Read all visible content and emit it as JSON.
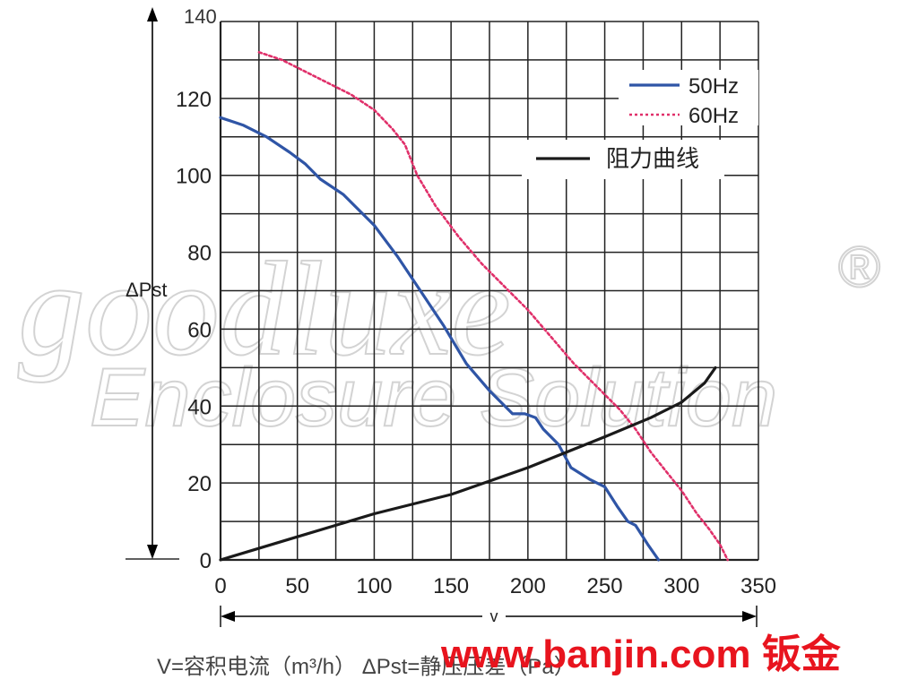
{
  "chart_data": {
    "type": "line",
    "title": "",
    "xlabel": "v",
    "ylabel": "ΔPst",
    "xlim": [
      0,
      350
    ],
    "ylim": [
      0,
      140
    ],
    "x_ticks": [
      0,
      50,
      100,
      150,
      200,
      250,
      300,
      350
    ],
    "y_ticks": [
      0,
      20,
      40,
      60,
      80,
      100,
      120,
      140
    ],
    "grid": true,
    "legend_position": "top-right",
    "series": [
      {
        "name": "50Hz",
        "style": "solid",
        "color": "#2f55a6",
        "points": [
          [
            0,
            115
          ],
          [
            15,
            113
          ],
          [
            30,
            110
          ],
          [
            45,
            106
          ],
          [
            55,
            103
          ],
          [
            65,
            99
          ],
          [
            80,
            95
          ],
          [
            100,
            87
          ],
          [
            115,
            79
          ],
          [
            130,
            70
          ],
          [
            145,
            61
          ],
          [
            160,
            51
          ],
          [
            175,
            44
          ],
          [
            190,
            38
          ],
          [
            198,
            38
          ],
          [
            205,
            37
          ],
          [
            210,
            34
          ],
          [
            220,
            30
          ],
          [
            228,
            24
          ],
          [
            240,
            21
          ],
          [
            250,
            19
          ],
          [
            258,
            14
          ],
          [
            265,
            10
          ],
          [
            270,
            9
          ],
          [
            278,
            4
          ],
          [
            285,
            0
          ]
        ]
      },
      {
        "name": "60Hz",
        "style": "dotted",
        "color": "#e0306a",
        "points": [
          [
            25,
            132
          ],
          [
            40,
            130
          ],
          [
            55,
            127
          ],
          [
            70,
            124
          ],
          [
            85,
            121
          ],
          [
            100,
            117
          ],
          [
            112,
            112
          ],
          [
            120,
            108
          ],
          [
            128,
            100
          ],
          [
            140,
            92
          ],
          [
            155,
            84
          ],
          [
            170,
            77
          ],
          [
            185,
            71
          ],
          [
            200,
            65
          ],
          [
            215,
            58
          ],
          [
            230,
            51
          ],
          [
            245,
            45
          ],
          [
            260,
            39
          ],
          [
            270,
            34
          ],
          [
            280,
            28
          ],
          [
            290,
            23
          ],
          [
            300,
            18
          ],
          [
            310,
            12
          ],
          [
            318,
            8
          ],
          [
            325,
            4
          ],
          [
            330,
            0
          ]
        ]
      },
      {
        "name": "阻力曲线",
        "style": "solid",
        "color": "#1a1a1a",
        "points": [
          [
            0,
            0
          ],
          [
            50,
            6
          ],
          [
            100,
            12
          ],
          [
            150,
            17
          ],
          [
            200,
            24
          ],
          [
            250,
            32
          ],
          [
            280,
            37
          ],
          [
            300,
            41
          ],
          [
            315,
            46
          ],
          [
            322,
            50
          ]
        ]
      }
    ]
  },
  "caption": {
    "formula_line": "V=容积电流（m³/h） ΔPst=静压压差（Pa）"
  },
  "overlays": {
    "top_left_label": "140",
    "watermark_script": "goodluxe",
    "watermark_text": "Enclosure Solution",
    "registered_mark": "®",
    "site_link": "www.banjin.com 钣金",
    "link_color": "#e8141e"
  }
}
